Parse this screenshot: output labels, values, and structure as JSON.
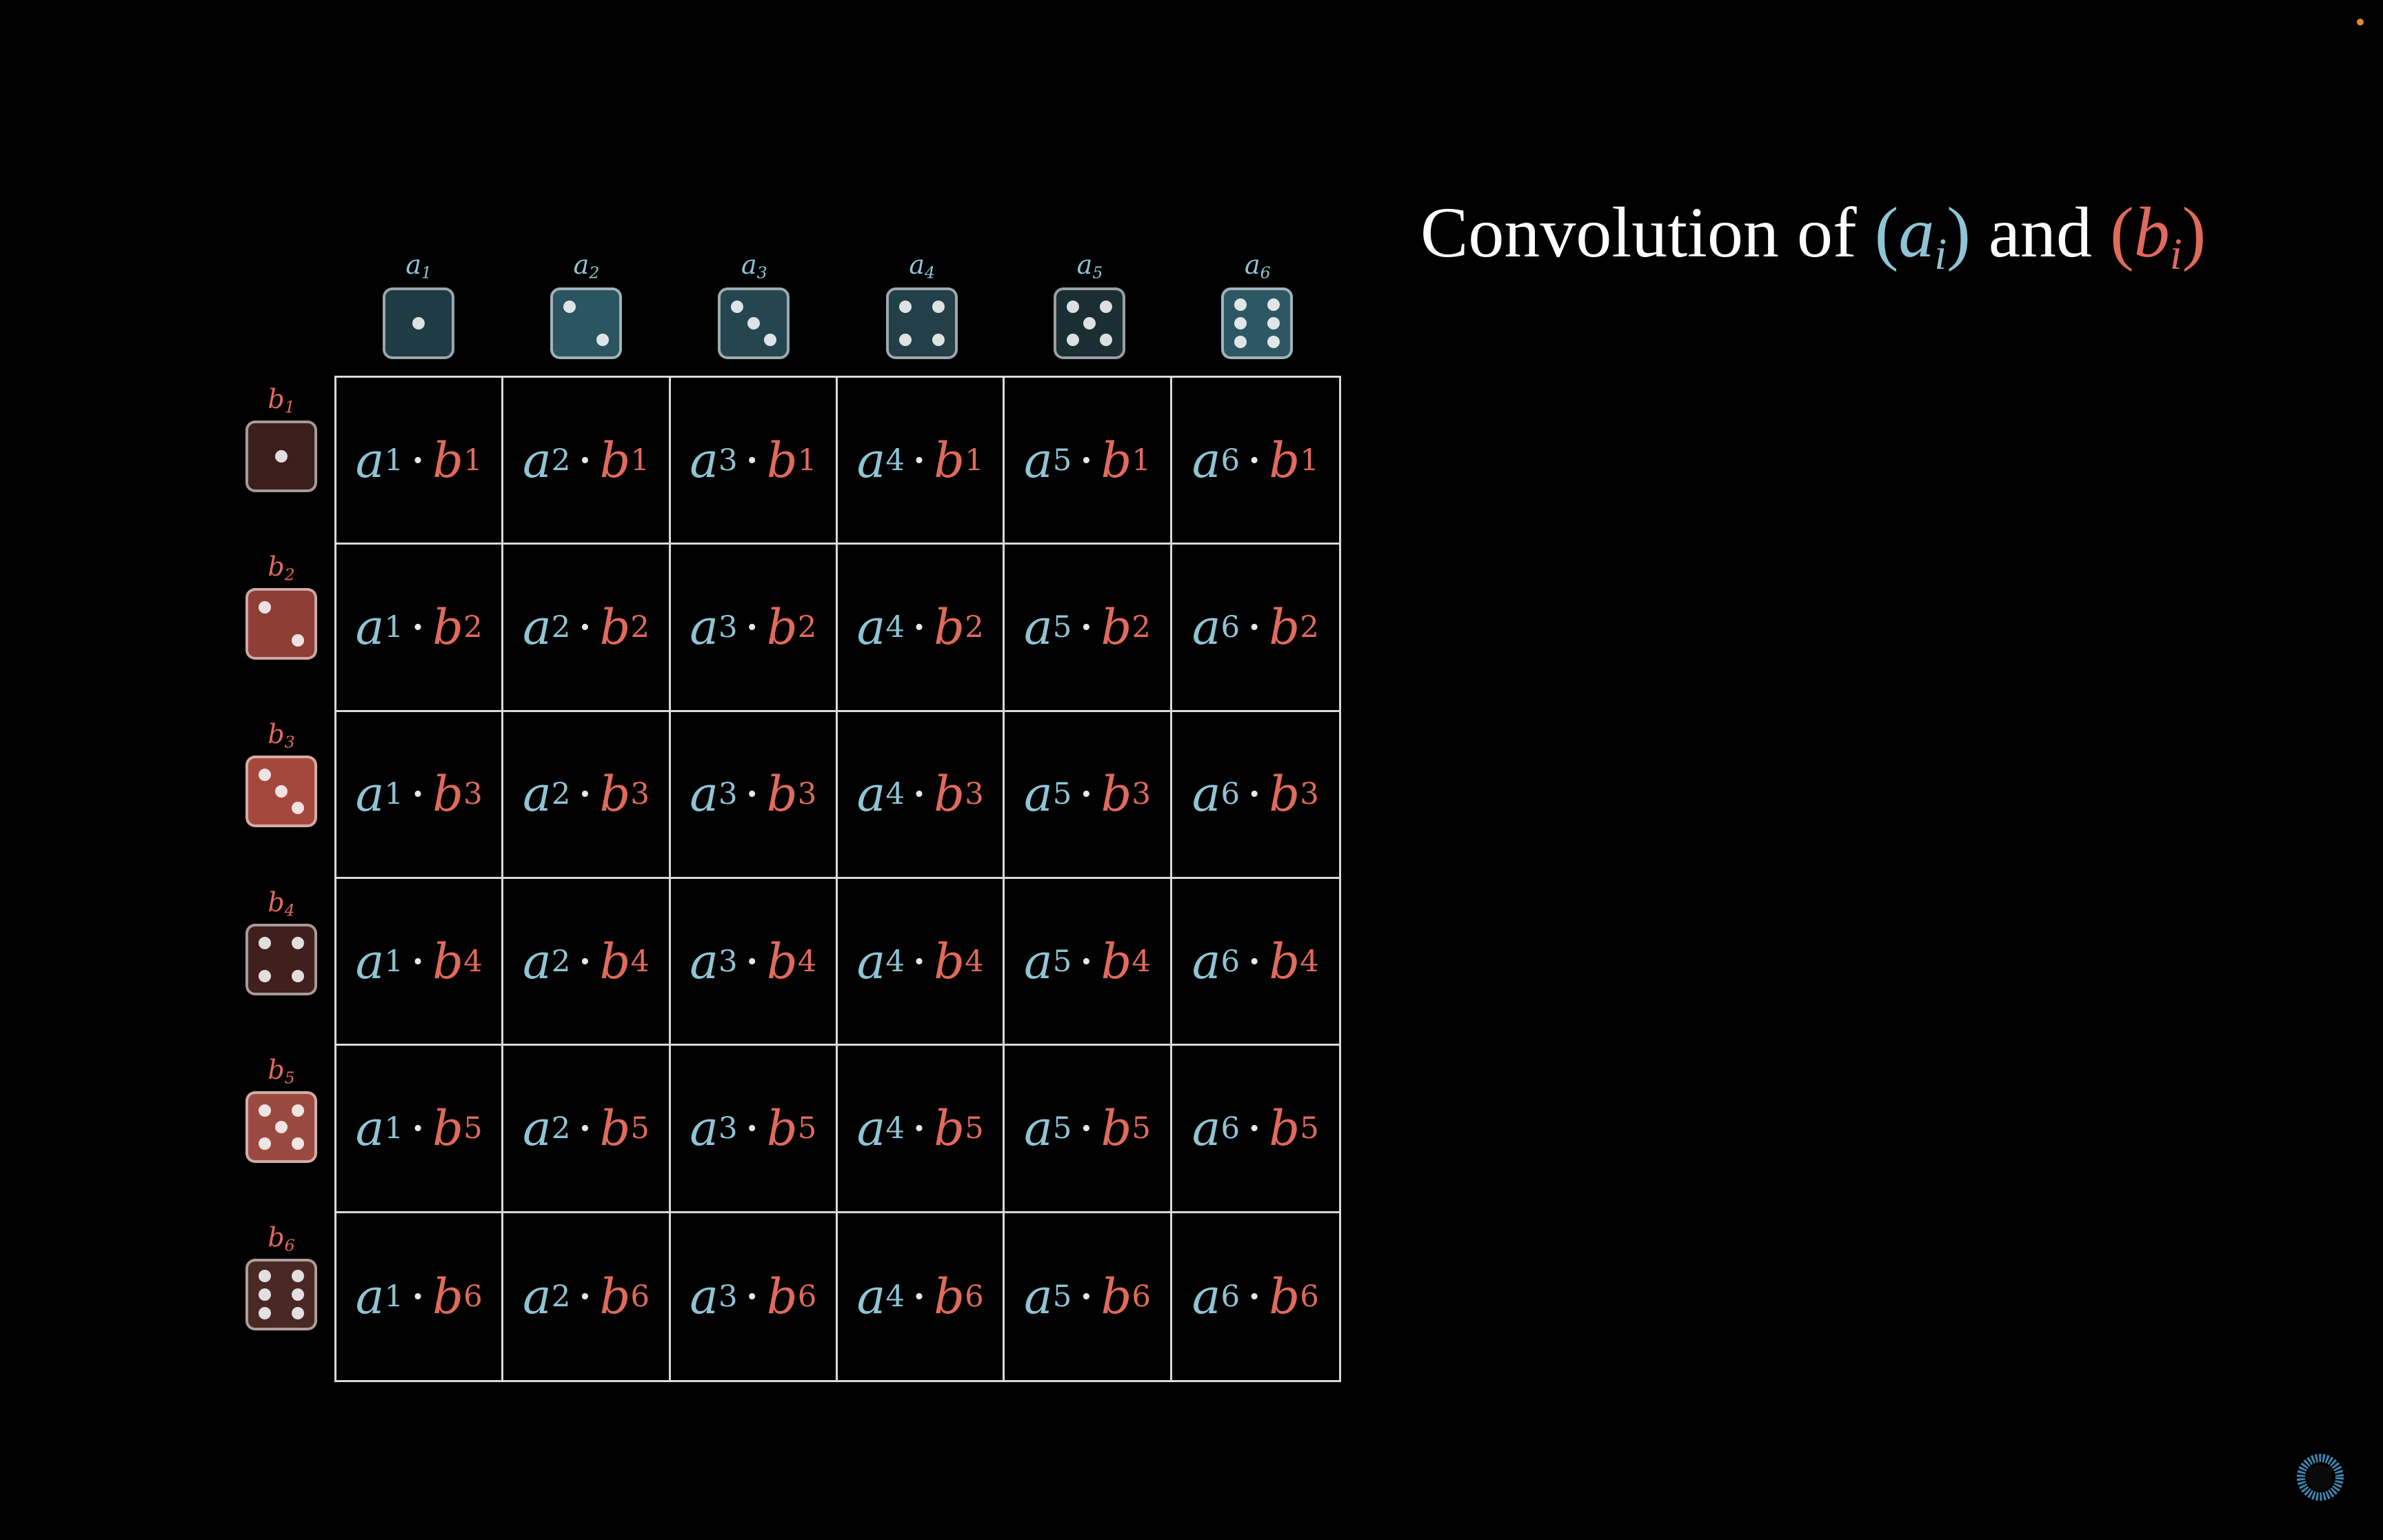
{
  "title": {
    "prefix": "Convolution of ",
    "open_a": "(",
    "a_base": "a",
    "a_sub": "i",
    "close_a": ")",
    "middle": " and ",
    "open_b": "(",
    "b_base": "b",
    "b_sub": "i",
    "close_b": ")"
  },
  "colors": {
    "a_color": "#8fc4d4",
    "b_color": "#e06a5c",
    "grid_line": "#d9d9d9",
    "background": "#000000"
  },
  "column_labels": [
    {
      "base": "a",
      "sub": "1"
    },
    {
      "base": "a",
      "sub": "2"
    },
    {
      "base": "a",
      "sub": "3"
    },
    {
      "base": "a",
      "sub": "4"
    },
    {
      "base": "a",
      "sub": "5"
    },
    {
      "base": "a",
      "sub": "6"
    }
  ],
  "row_labels": [
    {
      "base": "b",
      "sub": "1"
    },
    {
      "base": "b",
      "sub": "2"
    },
    {
      "base": "b",
      "sub": "3"
    },
    {
      "base": "b",
      "sub": "4"
    },
    {
      "base": "b",
      "sub": "5"
    },
    {
      "base": "b",
      "sub": "6"
    }
  ],
  "column_dice": [
    {
      "face": 1,
      "fill": "#1f3b43"
    },
    {
      "face": 2,
      "fill": "#2a5561"
    },
    {
      "face": 3,
      "fill": "#25464f"
    },
    {
      "face": 4,
      "fill": "#233f47"
    },
    {
      "face": 5,
      "fill": "#1b2e33"
    },
    {
      "face": 6,
      "fill": "#2e5764"
    }
  ],
  "row_dice": [
    {
      "face": 1,
      "fill": "#3b1f1c"
    },
    {
      "face": 2,
      "fill": "#8e3e35"
    },
    {
      "face": 3,
      "fill": "#a4483d"
    },
    {
      "face": 4,
      "fill": "#3f201d"
    },
    {
      "face": 5,
      "fill": "#9a4a40"
    },
    {
      "face": 6,
      "fill": "#4a2824"
    }
  ],
  "cell_operator": "·",
  "icons": {
    "loader": "loading-spinner-icon",
    "status_dot": "status-dot-icon"
  }
}
